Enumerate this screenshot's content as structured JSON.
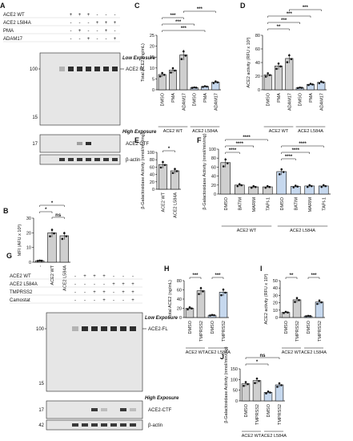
{
  "colors": {
    "dark": "#1a1a1a",
    "wt_light": "#cfcfcf",
    "l584a_light": "#c6d8ee",
    "blot_bg": "#e6e6e6"
  },
  "panels": {
    "A": {
      "letter": "A",
      "rows": [
        {
          "label": "ACE2 WT",
          "marks": [
            "",
            "+",
            "+",
            "+",
            "-",
            "-",
            "-"
          ]
        },
        {
          "label": "ACE2 L584A",
          "marks": [
            "",
            "-",
            "-",
            "-",
            "+",
            "+",
            "+"
          ]
        },
        {
          "label": "PMA",
          "marks": [
            "",
            "-",
            "+",
            "-",
            "-",
            "+",
            "-"
          ]
        },
        {
          "label": "ADAM17",
          "marks": [
            "",
            "-",
            "-",
            "+",
            "-",
            "-",
            "+"
          ]
        }
      ],
      "low_exposure": "Low Exposure",
      "high_exposure": "High Exposure",
      "fl_label": "ACE2 FL",
      "ctf_label": "ACE2 CTF",
      "actin_label": "β-actin",
      "mw": [
        "100",
        "15",
        "17"
      ]
    },
    "B": {
      "letter": "B",
      "ylabel": "MFI (AFU x 10³)",
      "yticks": [
        "0",
        "10",
        "20",
        "30"
      ],
      "xlabels": [
        "-",
        "ACE2 WT",
        "ACE2 L584A"
      ],
      "sig": [
        "*",
        "*",
        "ns"
      ],
      "chart_data": {
        "type": "bar",
        "categories": [
          "-",
          "ACE2 WT",
          "ACE2 L584A"
        ],
        "values": [
          1,
          20,
          18
        ],
        "ylim": [
          0,
          30
        ]
      }
    },
    "C": {
      "letter": "C",
      "ylabel": "Total ACE2 (ng/mL)",
      "yticks": [
        "0",
        "5",
        "10",
        "15",
        "20",
        "25"
      ],
      "xlabels": [
        "DMSO",
        "PMA",
        "ADAM17",
        "DMSO",
        "PMA",
        "ADAM17"
      ],
      "groups": [
        "ACE2 WT",
        "ACE2 L584A"
      ],
      "sig": [
        "***",
        "***",
        "***",
        "***"
      ],
      "chart_data": {
        "type": "bar",
        "categories": [
          "DMSO",
          "PMA",
          "ADAM17",
          "DMSO",
          "PMA",
          "ADAM17"
        ],
        "values": [
          7,
          9,
          16,
          1,
          1.5,
          3.5
        ],
        "ylim": [
          0,
          25
        ]
      }
    },
    "D": {
      "letter": "D",
      "ylabel": "ACE2 activity (RFU x 10³)",
      "yticks": [
        "0",
        "20",
        "40",
        "60",
        "80"
      ],
      "xlabels": [
        "DMSO",
        "PMA",
        "ADAM17",
        "DMSO",
        "PMA",
        "ADAM17"
      ],
      "groups": [
        "ACE2 WT",
        "ACE2 L584A"
      ],
      "sig": [
        "**",
        "***",
        "***",
        "***"
      ],
      "chart_data": {
        "type": "bar",
        "categories": [
          "DMSO",
          "PMA",
          "ADAM17",
          "DMSO",
          "PMA",
          "ADAM17"
        ],
        "values": [
          22,
          35,
          46,
          3,
          8,
          11
        ],
        "ylim": [
          0,
          80
        ]
      }
    },
    "E": {
      "letter": "E",
      "ylabel": "β-Galactosidase Activity (nmol/min/mg)",
      "yticks": [
        "0",
        "20",
        "40",
        "60",
        "80",
        "100"
      ],
      "xlabels": [
        "ACE2 WT",
        "ACE2 L584A"
      ],
      "sig": [
        "*"
      ],
      "chart_data": {
        "type": "bar",
        "categories": [
          "ACE2 WT",
          "ACE2 L584A"
        ],
        "values": [
          67,
          50
        ],
        "ylim": [
          0,
          100
        ]
      }
    },
    "F": {
      "letter": "F",
      "ylabel": "β-Galactosidase Activity (nmol/min/mg)",
      "yticks": [
        "0",
        "20",
        "40",
        "60",
        "80",
        "100"
      ],
      "xlabels": [
        "DMSO",
        "BATIM",
        "MARIM",
        "TAPI-1",
        "DMSO",
        "BATIM",
        "MARIM",
        "TAPI-1"
      ],
      "groups": [
        "ACE2 WT",
        "ACE2 L584A"
      ],
      "sig": [
        "****",
        "****",
        "****",
        "****",
        "****",
        "****"
      ],
      "chart_data": {
        "type": "bar",
        "categories": [
          "DMSO",
          "BATIM",
          "MARIM",
          "TAPI-1",
          "DMSO",
          "BATIM",
          "MARIM",
          "TAPI-1"
        ],
        "values": [
          70,
          20,
          16,
          16,
          50,
          17,
          18,
          18
        ],
        "ylim": [
          0,
          100
        ]
      }
    },
    "G": {
      "letter": "G",
      "rows": [
        {
          "label": "ACE2 WT",
          "marks": [
            "-",
            "+",
            "+",
            "+",
            "-",
            "-",
            "-"
          ]
        },
        {
          "label": "ACE2 L584A",
          "marks": [
            "-",
            "-",
            "-",
            "-",
            "+",
            "+",
            "+"
          ]
        },
        {
          "label": "TMPRSS2",
          "marks": [
            "-",
            "-",
            "+",
            "+",
            "-",
            "+",
            "+"
          ]
        },
        {
          "label": "Camostat",
          "marks": [
            "-",
            "-",
            "-",
            "+",
            "-",
            "-",
            "+"
          ]
        }
      ],
      "low_exposure": "Low Exposure",
      "high_exposure": "High Exposure",
      "fl_label": "ACE2-FL",
      "ctf_label": "ACE2-CTF",
      "actin_label": "β-actin",
      "mw": [
        "100",
        "15",
        "17",
        "42"
      ]
    },
    "H": {
      "letter": "H",
      "ylabel": "Total ACE2 (ng/mL)",
      "yticks": [
        "0",
        "20",
        "40",
        "60",
        "80"
      ],
      "xlabels": [
        "DMSO",
        "TMPRSS2",
        "DMSO",
        "TMPRSS2"
      ],
      "groups": [
        "ACE2 WT",
        "ACE2 L584A"
      ],
      "sig": [
        "***",
        "***"
      ],
      "chart_data": {
        "type": "bar",
        "categories": [
          "DMSO",
          "TMPRSS2",
          "DMSO",
          "TMPRSS2"
        ],
        "values": [
          20,
          58,
          5,
          55
        ],
        "ylim": [
          0,
          80
        ]
      }
    },
    "I": {
      "letter": "I",
      "ylabel": "ACE2 activity (RFU x 10³)",
      "yticks": [
        "0",
        "10",
        "20",
        "30",
        "40",
        "50"
      ],
      "xlabels": [
        "DMSO",
        "TMPRSS2",
        "DMSO",
        "TMPRSS2"
      ],
      "groups": [
        "ACE2 WT",
        "ACE2 L584A"
      ],
      "sig": [
        "**",
        "***"
      ],
      "chart_data": {
        "type": "bar",
        "categories": [
          "DMSO",
          "TMPRSS2",
          "DMSO",
          "TMPRSS2"
        ],
        "values": [
          7,
          24,
          2,
          21
        ],
        "ylim": [
          0,
          50
        ]
      }
    },
    "J": {
      "letter": "J",
      "ylabel": "β-Galactosidase Activity (nmol/min/mg)",
      "yticks": [
        "0",
        "50",
        "100",
        "150"
      ],
      "xlabels": [
        "DMSO",
        "TMPRSS2",
        "DMSO",
        "TMPRSS2"
      ],
      "groups": [
        "ACE2 WT",
        "ACE2 L584A"
      ],
      "sig": [
        "*",
        "ns"
      ],
      "chart_data": {
        "type": "bar",
        "categories": [
          "DMSO",
          "TMPRSS2",
          "DMSO",
          "TMPRSS2"
        ],
        "values": [
          80,
          95,
          40,
          75
        ],
        "ylim": [
          0,
          150
        ]
      }
    }
  }
}
